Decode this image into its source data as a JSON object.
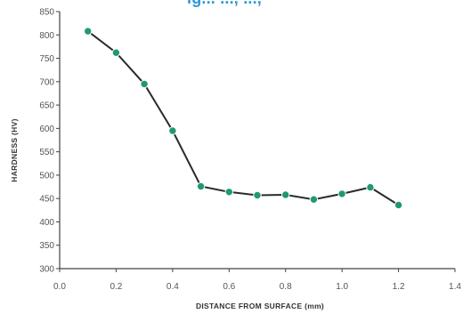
{
  "header": {
    "cropped_title": "ig... ..., ...,"
  },
  "chart_data": {
    "type": "line",
    "title": "",
    "xlabel": "DISTANCE FROM SURFACE (mm)",
    "ylabel": "HARDNESS (HV)",
    "xlim": [
      0.0,
      1.4
    ],
    "ylim": [
      300,
      850
    ],
    "x_ticks": [
      "0.0",
      "0.2",
      "0.4",
      "0.6",
      "0.8",
      "1.0",
      "1.2",
      "1.4"
    ],
    "y_ticks": [
      "300",
      "350",
      "400",
      "450",
      "500",
      "550",
      "600",
      "650",
      "700",
      "750",
      "800",
      "850"
    ],
    "grid": false,
    "colors": {
      "line": "#2b2b2b",
      "marker": "#1f9a6c",
      "axis": "#444444"
    },
    "series": [
      {
        "x": [
          0.1,
          0.2,
          0.3,
          0.4,
          0.5,
          0.6,
          0.7,
          0.8,
          0.9,
          1.0,
          1.1,
          1.2
        ],
        "values": [
          808,
          762,
          695,
          595,
          476,
          464,
          457,
          458,
          448,
          460,
          474,
          436
        ]
      }
    ]
  }
}
